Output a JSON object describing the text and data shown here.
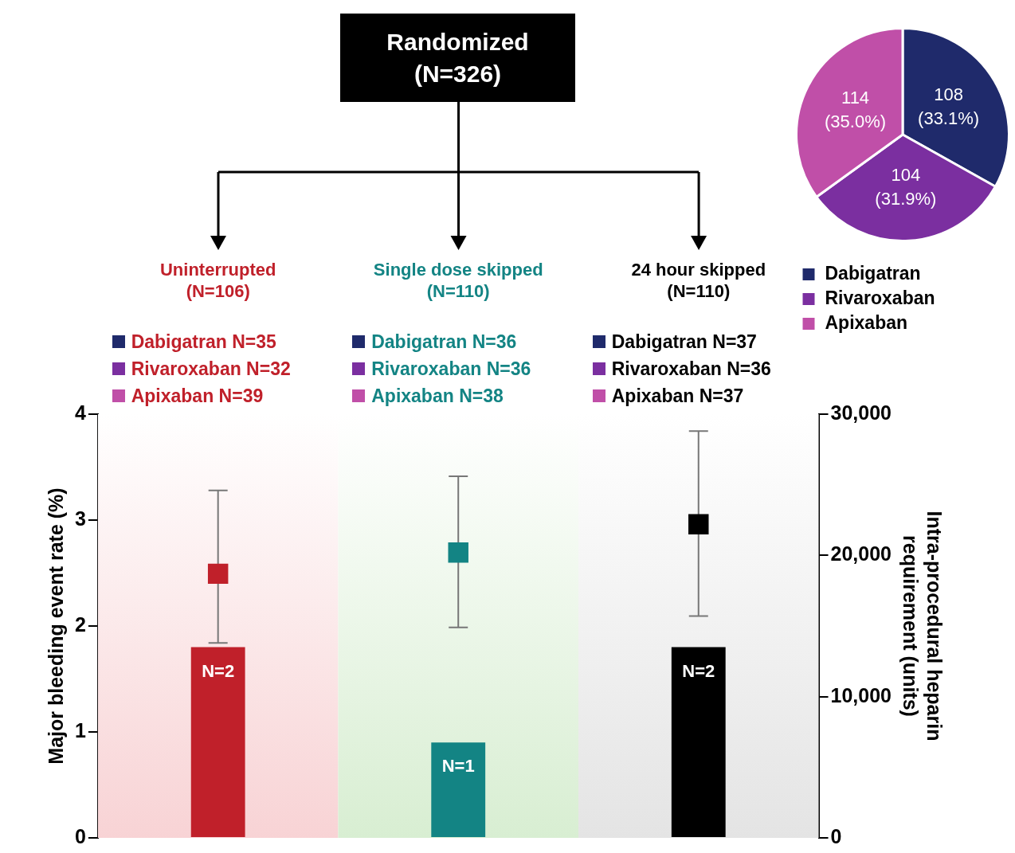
{
  "chart_data": [
    {
      "type": "bar",
      "categories": [
        "Uninterrupted (N=106)",
        "Single dose skipped (N=110)",
        "24 hour skipped (N=110)"
      ],
      "series": [
        {
          "type": "bar",
          "colors": [
            "#c0202a",
            "#138484",
            "#000000"
          ],
          "values": [
            1.8,
            0.9,
            1.8
          ],
          "value_labels": [
            "N=2",
            "N=1",
            "N=2"
          ]
        },
        {
          "type": "scatter",
          "axis": "y2",
          "marker": "square",
          "x": [
            "Uninterrupted (N=106)",
            "Single dose skipped (N=110)",
            "24 hour skipped (N=110)"
          ],
          "colors": [
            "#c0202a",
            "#138484",
            "#000000"
          ],
          "values": [
            18700,
            20200,
            22200
          ],
          "errors": [
            [
              13800,
              24600
            ],
            [
              14900,
              25600
            ],
            [
              15700,
              28800
            ]
          ]
        }
      ],
      "ylabel": "Major bleeding event rate (%)",
      "y2label": "Intra-procedural heparin requirement (units)",
      "ylim": [
        0,
        4
      ],
      "yticks": [
        0,
        1,
        2,
        3,
        4
      ],
      "y2lim": [
        0,
        30000
      ],
      "y2ticks": [
        0,
        {
          "value": 10000,
          "label": "10,000"
        },
        {
          "value": 20000,
          "label": "20,000"
        },
        {
          "value": 30000,
          "label": "30,000"
        }
      ],
      "grid": false,
      "bands": [
        {
          "axis": "x",
          "from": "Uninterrupted (N=106)",
          "to": "Uninterrupted (N=106)",
          "color": "#f8d3d5"
        },
        {
          "axis": "x",
          "from": "Single dose skipped (N=110)",
          "to": "Single dose skipped (N=110)",
          "color": "#d8eed2"
        },
        {
          "axis": "x",
          "from": "24 hour skipped (N=110)",
          "to": "24 hour skipped (N=110)",
          "color": "#e4e4e4"
        }
      ],
      "annotations": [
        "Randomized (N=326)",
        "Dabigatran N=35",
        "Rivaroxaban N=32",
        "Apixaban N=39",
        "Dabigatran N=36",
        "Rivaroxaban N=36",
        "Apixaban N=38",
        "Dabigatran N=37",
        "Rivaroxaban N=36",
        "Apixaban N=37"
      ]
    },
    {
      "type": "pie",
      "categories": [
        "Dabigatran",
        "Rivaroxaban",
        "Apixaban"
      ],
      "values": [
        108,
        104,
        114
      ],
      "colors": [
        "#1f2a6b",
        "#7b2fa0",
        "#c04fa8"
      ],
      "value_labels": [
        "108 (33.1%)",
        "104 (31.9%)",
        "114 (35.0%)"
      ],
      "legend": "bottom"
    }
  ]
}
